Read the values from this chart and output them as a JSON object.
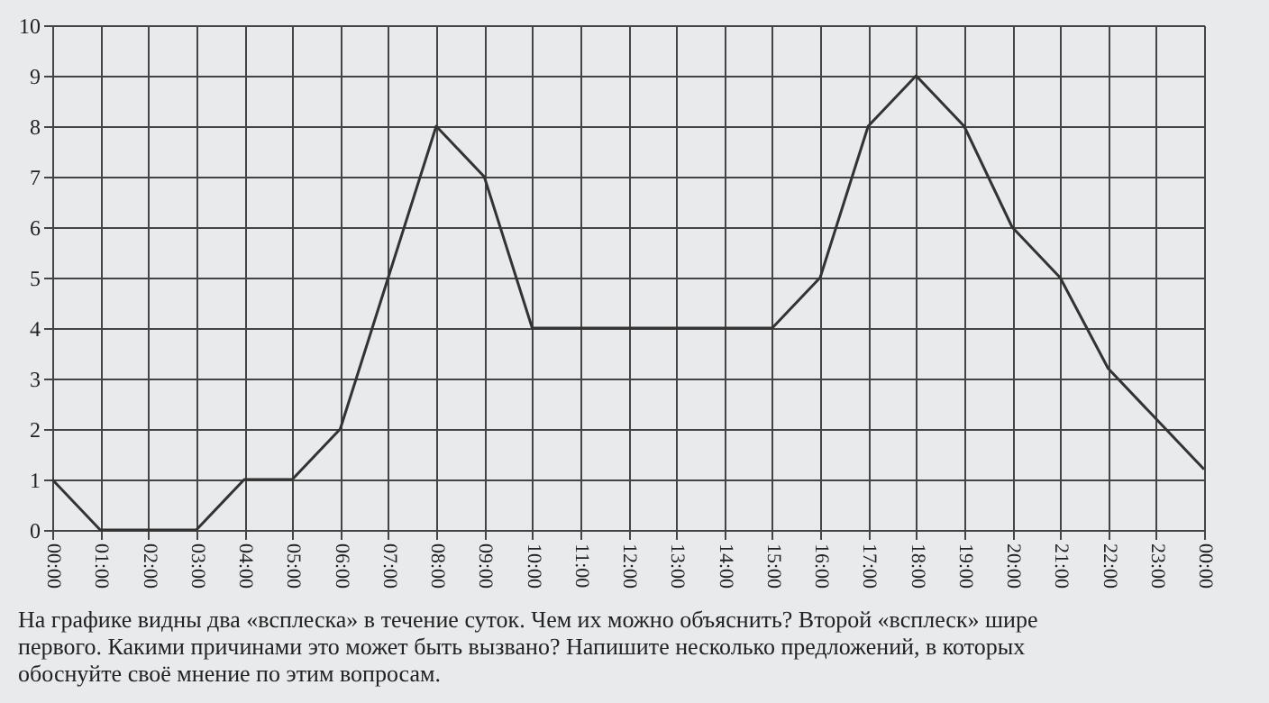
{
  "chart_data": {
    "type": "line",
    "categories": [
      "00:00",
      "01:00",
      "02:00",
      "03:00",
      "04:00",
      "05:00",
      "06:00",
      "07:00",
      "08:00",
      "09:00",
      "10:00",
      "11:00",
      "12:00",
      "13:00",
      "14:00",
      "15:00",
      "16:00",
      "17:00",
      "18:00",
      "19:00",
      "20:00",
      "21:00",
      "22:00",
      "23:00",
      "00:00"
    ],
    "series": [
      {
        "color": "#333333",
        "values": [
          1,
          0,
          0,
          0,
          1,
          1,
          2,
          5,
          8,
          7,
          4,
          4,
          4,
          4,
          4,
          4,
          5,
          8,
          9,
          8,
          6,
          5,
          3.2,
          2.2,
          1.2
        ]
      }
    ],
    "ylim": [
      0,
      10
    ],
    "yticks": [
      0,
      1,
      2,
      3,
      4,
      5,
      6,
      7,
      8,
      9,
      10
    ],
    "grid": true,
    "marker": "none",
    "line_style": "solid",
    "annotations": [
      "На графике видны два «всплеска» в течение суток. Чем их можно объяснить? Второй «всплеск» шире первого. Какими причинами это может быть вызвано? Напишите несколько предложений, в которых обоснуйте своё мнение по этим вопросам."
    ]
  }
}
